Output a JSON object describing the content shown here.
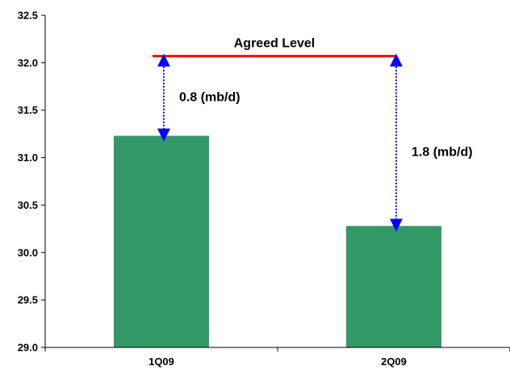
{
  "chart_data": {
    "type": "bar",
    "categories": [
      "1Q09",
      "2Q09"
    ],
    "values": [
      31.23,
      30.28
    ],
    "ylim": [
      29.0,
      32.5
    ],
    "yticks": [
      "29.0",
      "29.5",
      "30.0",
      "30.5",
      "31.0",
      "31.5",
      "32.0",
      "32.5"
    ],
    "grid": false,
    "bar_color": "#339966",
    "reference_line": {
      "label": "Agreed Level",
      "value": 32.07,
      "color": "#ff0000"
    },
    "gap_annotations": [
      {
        "category": "1Q09",
        "label": "0.8 (mb/d)"
      },
      {
        "category": "2Q09",
        "label": "1.8 (mb/d)"
      }
    ],
    "arrow_color": "#0000ff"
  }
}
